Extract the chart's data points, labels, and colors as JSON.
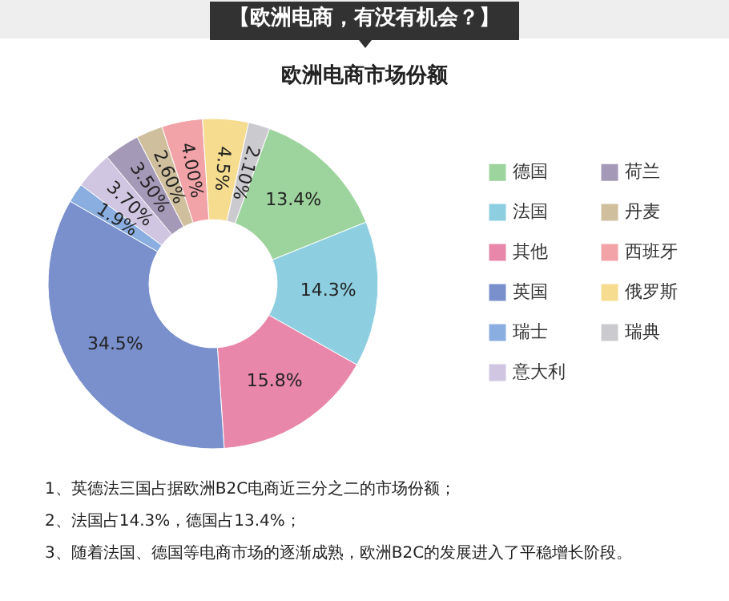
{
  "chart_data": {
    "type": "donut",
    "title": "【欧洲电商，有没有机会？】",
    "subtitle": "欧洲电商市场份额",
    "categories": [
      "德国",
      "法国",
      "其他",
      "英国",
      "瑞士",
      "意大利",
      "荷兰",
      "丹麦",
      "西班牙",
      "俄罗斯",
      "瑞典"
    ],
    "values": [
      13.4,
      14.3,
      15.8,
      34.5,
      1.9,
      3.7,
      3.5,
      2.6,
      4.0,
      4.5,
      2.1
    ],
    "colors": [
      "#9dd39c",
      "#8dcfe0",
      "#e887a9",
      "#7990cd",
      "#8aaee0",
      "#d0c6e2",
      "#a599b8",
      "#cfbf9c",
      "#f2a3a8",
      "#f5dc8f",
      "#cbcbcf"
    ],
    "value_labels": [
      "13.4%",
      "14.3%",
      "15.8%",
      "34.5%",
      "1.9%",
      "3.70%",
      "3.50%",
      "2.60%",
      "4.00%",
      "4.5%",
      "2.10%"
    ],
    "legend": "right",
    "annotations": [
      "1、英德法三国占据欧洲B2C电商近三分之二的市场份额；",
      "2、法国占14.3%，德国占13.4%；",
      "3、随着法国、德国等电商市场的逐渐成熟，欧洲B2C的发展进入了平稳增长阶段。"
    ]
  }
}
